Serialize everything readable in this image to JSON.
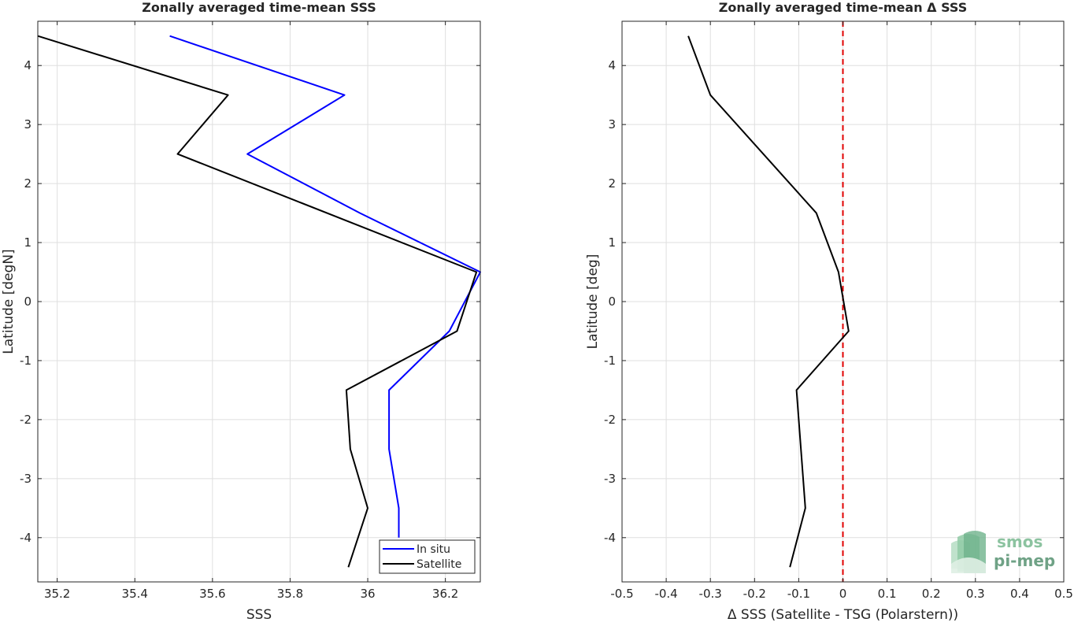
{
  "chart_data": [
    {
      "type": "line",
      "title": "Zonally averaged time-mean SSS",
      "xlabel": "SSS",
      "ylabel": "Latitude [degN]",
      "xlim": [
        35.15,
        36.29
      ],
      "ylim": [
        -4.75,
        4.75
      ],
      "xticks": [
        35.2,
        35.4,
        35.6,
        35.8,
        36,
        36.2
      ],
      "xtick_labels": [
        "35.2",
        "35.4",
        "35.6",
        "35.8",
        "36",
        "36.2"
      ],
      "yticks": [
        -4,
        -3,
        -2,
        -1,
        0,
        1,
        2,
        3,
        4
      ],
      "ytick_labels": [
        "-4",
        "-3",
        "-2",
        "-1",
        "0",
        "1",
        "2",
        "3",
        "4"
      ],
      "grid": true,
      "legend": {
        "position": "bottom-right"
      },
      "series": [
        {
          "name": "In situ",
          "color": "#0000ff",
          "points": [
            [
              36.08,
              -4.0
            ],
            [
              36.08,
              -3.5
            ],
            [
              36.055,
              -2.5
            ],
            [
              36.055,
              -1.5
            ],
            [
              36.21,
              -0.5
            ],
            [
              36.29,
              0.5
            ],
            [
              35.98,
              1.5
            ],
            [
              35.69,
              2.5
            ],
            [
              35.94,
              3.5
            ],
            [
              35.49,
              4.5
            ]
          ]
        },
        {
          "name": "Satellite",
          "color": "#000000",
          "points": [
            [
              35.95,
              -4.5
            ],
            [
              36.0,
              -3.5
            ],
            [
              35.955,
              -2.5
            ],
            [
              35.945,
              -1.5
            ],
            [
              36.23,
              -0.5
            ],
            [
              36.28,
              0.5
            ],
            [
              35.51,
              2.5
            ],
            [
              35.64,
              3.5
            ],
            [
              35.15,
              4.5
            ]
          ]
        }
      ]
    },
    {
      "type": "line",
      "title": "Zonally averaged time-mean Δ SSS",
      "xlabel": "Δ SSS (Satellite - TSG (Polarstern))",
      "ylabel": "Latitude [deg]",
      "xlim": [
        -0.5,
        0.5
      ],
      "ylim": [
        -4.75,
        4.75
      ],
      "xticks": [
        -0.5,
        -0.4,
        -0.3,
        -0.2,
        -0.1,
        0,
        0.1,
        0.2,
        0.3,
        0.4,
        0.5
      ],
      "xtick_labels": [
        "-0.5",
        "-0.4",
        "-0.3",
        "-0.2",
        "-0.1",
        "0",
        "0.1",
        "0.2",
        "0.3",
        "0.4",
        "0.5"
      ],
      "yticks": [
        -4,
        -3,
        -2,
        -1,
        0,
        1,
        2,
        3,
        4
      ],
      "ytick_labels": [
        "-4",
        "-3",
        "-2",
        "-1",
        "0",
        "1",
        "2",
        "3",
        "4"
      ],
      "grid": true,
      "reference_line": {
        "x": 0,
        "color": "#e00000",
        "style": "dashed"
      },
      "series": [
        {
          "color": "#000000",
          "points": [
            [
              -0.12,
              -4.5
            ],
            [
              -0.085,
              -3.5
            ],
            [
              -0.105,
              -1.5
            ],
            [
              0.013,
              -0.5
            ],
            [
              -0.01,
              0.5
            ],
            [
              -0.06,
              1.5
            ],
            [
              -0.3,
              3.5
            ],
            [
              -0.35,
              4.5
            ]
          ]
        }
      ]
    }
  ],
  "logo": {
    "line1": "smos",
    "line2": "pi-mep",
    "color": "#6fb38c"
  }
}
